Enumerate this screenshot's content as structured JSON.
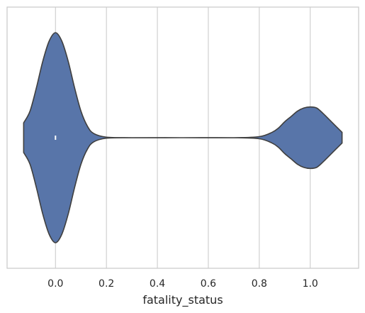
{
  "chart_data": {
    "type": "violin",
    "orientation": "horizontal",
    "xlabel": "fatality_status",
    "ylabel": "",
    "xlim": [
      -0.19,
      1.19
    ],
    "x_ticks": [
      0.0,
      0.2,
      0.4,
      0.6,
      0.8,
      1.0
    ],
    "x_tick_labels": [
      "0.0",
      "0.2",
      "0.4",
      "0.6",
      "0.8",
      "1.0"
    ],
    "grid": "vertical",
    "kde_support": [
      -0.125,
      1.125
    ],
    "density_profile": {
      "x": [
        -0.125,
        -0.1,
        -0.075,
        -0.05,
        -0.025,
        0.0,
        0.025,
        0.05,
        0.075,
        0.1,
        0.125,
        0.15,
        0.2,
        0.3,
        0.5,
        0.7,
        0.8,
        0.85,
        0.875,
        0.9,
        0.925,
        0.95,
        0.975,
        1.0,
        1.025,
        1.05,
        1.075,
        1.1,
        1.125
      ],
      "half_width": [
        0.141,
        0.253,
        0.475,
        0.727,
        0.919,
        1.0,
        0.919,
        0.727,
        0.475,
        0.253,
        0.111,
        0.04,
        0.005,
        0.0,
        0.0,
        0.0,
        0.01,
        0.051,
        0.091,
        0.152,
        0.202,
        0.253,
        0.283,
        0.293,
        0.283,
        0.232,
        0.172,
        0.111,
        0.051
      ]
    },
    "inner": {
      "type": "box",
      "q1": 0.0,
      "median": 0.0,
      "q3": 0.0
    },
    "colors": {
      "fill": "#5875a9",
      "edge": "#3f3f3f",
      "grid": "#cccccc",
      "frame": "#cccccc",
      "median": "#ffffff"
    }
  }
}
